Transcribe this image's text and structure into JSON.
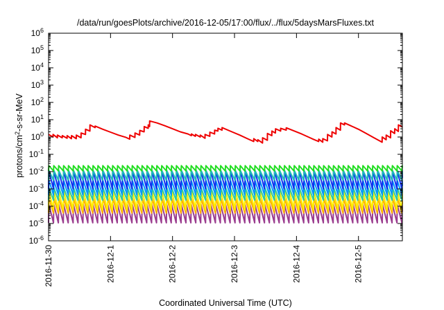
{
  "chart_data": {
    "type": "line",
    "title": "/data/run/goesPlots/archive/2016-12-05/17:00/flux/../flux/5daysMarsFluxes.txt",
    "xlabel": "Coordinated Universal Time (UTC)",
    "ylabel": "protons/cm2-s-sr-MeV",
    "ylabel_parts": {
      "before": "protons/cm",
      "sup": "2",
      "after": "-s-sr-MeV"
    },
    "y_scale": "log",
    "ylim_exponent": [
      -6,
      6
    ],
    "y_ticks": [
      {
        "base": "10",
        "exp": "-6",
        "value_exponent": -6
      },
      {
        "base": "10",
        "exp": "-5",
        "value_exponent": -5
      },
      {
        "base": "10",
        "exp": "-4",
        "value_exponent": -4
      },
      {
        "base": "10",
        "exp": "-3",
        "value_exponent": -3
      },
      {
        "base": "10",
        "exp": "-2",
        "value_exponent": -2
      },
      {
        "base": "10",
        "exp": "-1",
        "value_exponent": -1
      },
      {
        "base": "10",
        "exp": "0",
        "value_exponent": 0
      },
      {
        "base": "10",
        "exp": "1",
        "value_exponent": 1
      },
      {
        "base": "10",
        "exp": "2",
        "value_exponent": 2
      },
      {
        "base": "10",
        "exp": "3",
        "value_exponent": 3
      },
      {
        "base": "10",
        "exp": "4",
        "value_exponent": 4
      },
      {
        "base": "10",
        "exp": "5",
        "value_exponent": 5
      },
      {
        "base": "10",
        "exp": "6",
        "value_exponent": 6
      }
    ],
    "x_start": "2016-11-30 00:00",
    "x_end": "2016-12-05 17:00",
    "x_ticks": [
      {
        "label": "2016-11-30",
        "date": "2016-11-30"
      },
      {
        "label": "2016-12-1",
        "date": "2016-12-01"
      },
      {
        "label": "2016-12-2",
        "date": "2016-12-02"
      },
      {
        "label": "2016-12-3",
        "date": "2016-12-03"
      },
      {
        "label": "2016-12-4",
        "date": "2016-12-04"
      },
      {
        "label": "2016-12-5",
        "date": "2016-12-05"
      }
    ],
    "grid": false,
    "legend": "none",
    "series": [
      {
        "color": "#ee0000",
        "points": [
          [
            "2016-11-30 00:00",
            1.4
          ],
          [
            "2016-11-30 01:43",
            1.0
          ],
          [
            "2016-11-30 01:45",
            1.4
          ],
          [
            "2016-11-30 03:24",
            0.9
          ],
          [
            "2016-11-30 03:26",
            1.3
          ],
          [
            "2016-11-30 05:17",
            0.9
          ],
          [
            "2016-11-30 05:19",
            1.2
          ],
          [
            "2016-11-30 07:10",
            0.85
          ],
          [
            "2016-11-30 07:12",
            1.2
          ],
          [
            "2016-11-30 08:51",
            0.8
          ],
          [
            "2016-11-30 08:53",
            1.2
          ],
          [
            "2016-11-30 10:43",
            0.8
          ],
          [
            "2016-11-30 10:45",
            1.3
          ],
          [
            "2016-11-30 12:34",
            0.9
          ],
          [
            "2016-11-30 12:36",
            1.7
          ],
          [
            "2016-11-30 14:17",
            1.4
          ],
          [
            "2016-11-30 14:19",
            2.8
          ],
          [
            "2016-11-30 16:00",
            2.2
          ],
          [
            "2016-11-30 16:02",
            5.0
          ],
          [
            "2016-11-30 18:00",
            3.5
          ],
          [
            "2016-11-30 18:02",
            4.3
          ],
          [
            "2016-11-30 21:00",
            2.8
          ],
          [
            "2016-12-01 00:00",
            1.9
          ],
          [
            "2016-12-01 03:00",
            1.3
          ],
          [
            "2016-12-01 06:00",
            0.95
          ],
          [
            "2016-12-01 07:26",
            0.75
          ],
          [
            "2016-12-01 07:28",
            1.3
          ],
          [
            "2016-12-01 09:26",
            0.95
          ],
          [
            "2016-12-01 09:28",
            1.7
          ],
          [
            "2016-12-01 11:17",
            1.3
          ],
          [
            "2016-12-01 11:19",
            2.4
          ],
          [
            "2016-12-01 13:00",
            2.0
          ],
          [
            "2016-12-01 13:02",
            4.0
          ],
          [
            "2016-12-01 14:34",
            3.2
          ],
          [
            "2016-12-01 14:36",
            5.0
          ],
          [
            "2016-12-01 15:07",
            4.0
          ],
          [
            "2016-12-01 15:09",
            8.5
          ],
          [
            "2016-12-01 18:00",
            6.5
          ],
          [
            "2016-12-01 21:00",
            4.5
          ],
          [
            "2016-12-02 00:00",
            3.0
          ],
          [
            "2016-12-02 03:00",
            2.0
          ],
          [
            "2016-12-02 06:00",
            1.5
          ],
          [
            "2016-12-02 07:17",
            1.2
          ],
          [
            "2016-12-02 07:19",
            1.5
          ],
          [
            "2016-12-02 08:51",
            1.1
          ],
          [
            "2016-12-02 08:53",
            1.4
          ],
          [
            "2016-12-02 10:43",
            1.0
          ],
          [
            "2016-12-02 10:45",
            1.3
          ],
          [
            "2016-12-02 12:34",
            0.85
          ],
          [
            "2016-12-02 12:36",
            1.4
          ],
          [
            "2016-12-02 14:26",
            1.1
          ],
          [
            "2016-12-02 14:28",
            1.9
          ],
          [
            "2016-12-02 16:17",
            1.5
          ],
          [
            "2016-12-02 16:19",
            2.5
          ],
          [
            "2016-12-02 17:34",
            2.2
          ],
          [
            "2016-12-02 17:36",
            3.2
          ],
          [
            "2016-12-02 19:09",
            2.5
          ],
          [
            "2016-12-02 19:11",
            3.5
          ],
          [
            "2016-12-02 23:00",
            2.0
          ],
          [
            "2016-12-03 02:00",
            1.3
          ],
          [
            "2016-12-03 05:00",
            0.8
          ],
          [
            "2016-12-03 07:26",
            0.55
          ],
          [
            "2016-12-03 07:28",
            0.8
          ],
          [
            "2016-12-03 09:00",
            0.55
          ],
          [
            "2016-12-03 09:02",
            0.7
          ],
          [
            "2016-12-03 10:51",
            0.45
          ],
          [
            "2016-12-03 10:53",
            0.9
          ],
          [
            "2016-12-03 12:43",
            0.65
          ],
          [
            "2016-12-03 12:45",
            1.6
          ],
          [
            "2016-12-03 14:26",
            1.2
          ],
          [
            "2016-12-03 14:28",
            2.2
          ],
          [
            "2016-12-03 15:51",
            1.7
          ],
          [
            "2016-12-03 15:53",
            3.0
          ],
          [
            "2016-12-03 17:51",
            2.2
          ],
          [
            "2016-12-03 17:53",
            3.2
          ],
          [
            "2016-12-03 20:00",
            2.5
          ],
          [
            "2016-12-03 20:02",
            3.4
          ],
          [
            "2016-12-04 02:00",
            1.5
          ],
          [
            "2016-12-04 06:00",
            0.8
          ],
          [
            "2016-12-04 08:34",
            0.55
          ],
          [
            "2016-12-04 08:36",
            0.75
          ],
          [
            "2016-12-04 10:09",
            0.5
          ],
          [
            "2016-12-04 10:11",
            0.8
          ],
          [
            "2016-12-04 12:00",
            0.6
          ],
          [
            "2016-12-04 12:02",
            1.4
          ],
          [
            "2016-12-04 13:43",
            1.0
          ],
          [
            "2016-12-04 13:45",
            2.0
          ],
          [
            "2016-12-04 15:17",
            1.5
          ],
          [
            "2016-12-04 15:19",
            3.5
          ],
          [
            "2016-12-04 17:00",
            2.5
          ],
          [
            "2016-12-04 17:02",
            6.5
          ],
          [
            "2016-12-04 18:34",
            5.0
          ],
          [
            "2016-12-04 18:36",
            6.5
          ],
          [
            "2016-12-04 21:00",
            4.5
          ],
          [
            "2016-12-05 00:00",
            2.8
          ],
          [
            "2016-12-05 03:00",
            1.6
          ],
          [
            "2016-12-05 06:00",
            0.9
          ],
          [
            "2016-12-05 09:09",
            0.5
          ],
          [
            "2016-12-05 09:11",
            1.0
          ],
          [
            "2016-12-05 10:43",
            0.7
          ],
          [
            "2016-12-05 10:45",
            1.3
          ],
          [
            "2016-12-05 12:26",
            0.9
          ],
          [
            "2016-12-05 12:28",
            2.3
          ],
          [
            "2016-12-05 14:00",
            1.6
          ],
          [
            "2016-12-05 14:02",
            3.0
          ],
          [
            "2016-12-05 15:26",
            2.1
          ],
          [
            "2016-12-05 15:28",
            5.0
          ],
          [
            "2016-12-05 17:00",
            3.8
          ]
        ]
      },
      {
        "color": "#22dd22",
        "profile": {
          "period_hours": 1.9,
          "peak": 0.022,
          "trough": 0.011
        }
      },
      {
        "color": "#22bbbb",
        "profile": {
          "period_hours": 1.9,
          "peak": 0.012,
          "trough": 0.0032
        }
      },
      {
        "color": "#1133ee",
        "profile": {
          "period_hours": 1.9,
          "peak": 0.011,
          "trough": 0.001
        }
      },
      {
        "color": "#0099ff",
        "profile": {
          "period_hours": 1.9,
          "peak": 0.0032,
          "trough": 0.00045
        }
      },
      {
        "color": "#33cc99",
        "profile": {
          "period_hours": 1.9,
          "peak": 0.0012,
          "trough": 0.00022
        }
      },
      {
        "color": "#ffee00",
        "profile": {
          "period_hours": 1.9,
          "peak": 0.0008,
          "trough": 6e-05
        }
      },
      {
        "color": "#ffaa00",
        "profile": {
          "period_hours": 1.9,
          "peak": 0.0003,
          "trough": 4e-05
        }
      },
      {
        "color": "#9b3d8f",
        "profile": {
          "period_hours": 1.9,
          "peak": 0.00013,
          "trough": 1.1e-05
        }
      }
    ]
  }
}
